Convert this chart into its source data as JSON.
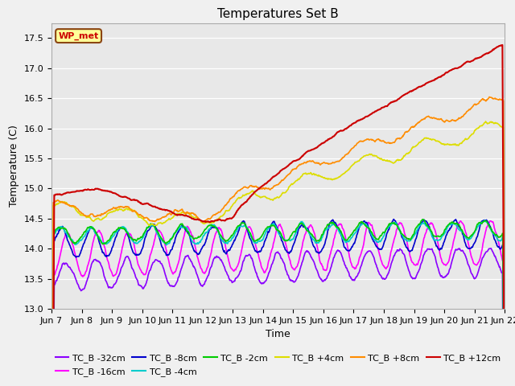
{
  "title": "Temperatures Set B",
  "xlabel": "Time",
  "ylabel": "Temperature (C)",
  "ylim": [
    13.0,
    17.75
  ],
  "yticks": [
    13.0,
    13.5,
    14.0,
    14.5,
    15.0,
    15.5,
    16.0,
    16.5,
    17.0,
    17.5
  ],
  "series": [
    {
      "label": "TC_B -32cm",
      "color": "#8B00FF",
      "lw": 1.2
    },
    {
      "label": "TC_B -16cm",
      "color": "#FF00FF",
      "lw": 1.2
    },
    {
      "label": "TC_B -8cm",
      "color": "#0000CD",
      "lw": 1.2
    },
    {
      "label": "TC_B -4cm",
      "color": "#00CCCC",
      "lw": 1.2
    },
    {
      "label": "TC_B -2cm",
      "color": "#00CC00",
      "lw": 1.2
    },
    {
      "label": "TC_B +4cm",
      "color": "#DDDD00",
      "lw": 1.2
    },
    {
      "label": "TC_B +8cm",
      "color": "#FF8C00",
      "lw": 1.2
    },
    {
      "label": "TC_B +12cm",
      "color": "#CC0000",
      "lw": 1.5
    }
  ],
  "x_tick_labels": [
    "Jun 7",
    "Jun 8",
    "Jun 9",
    "Jun 10",
    "Jun 11",
    "Jun 12",
    "Jun 13",
    "Jun 14",
    "Jun 15",
    "Jun 16",
    "Jun 17",
    "Jun 18",
    "Jun 19",
    "Jun 20",
    "Jun 21",
    "Jun 22"
  ],
  "n_points": 1000,
  "legend_label": "WP_met",
  "legend_bg": "#FFFF99",
  "legend_border": "#8B4513",
  "plot_bg": "#E8E8E8",
  "fig_bg": "#F0F0F0",
  "grid_color": "#FFFFFF",
  "title_fontsize": 11,
  "axis_fontsize": 9,
  "tick_fontsize": 8
}
